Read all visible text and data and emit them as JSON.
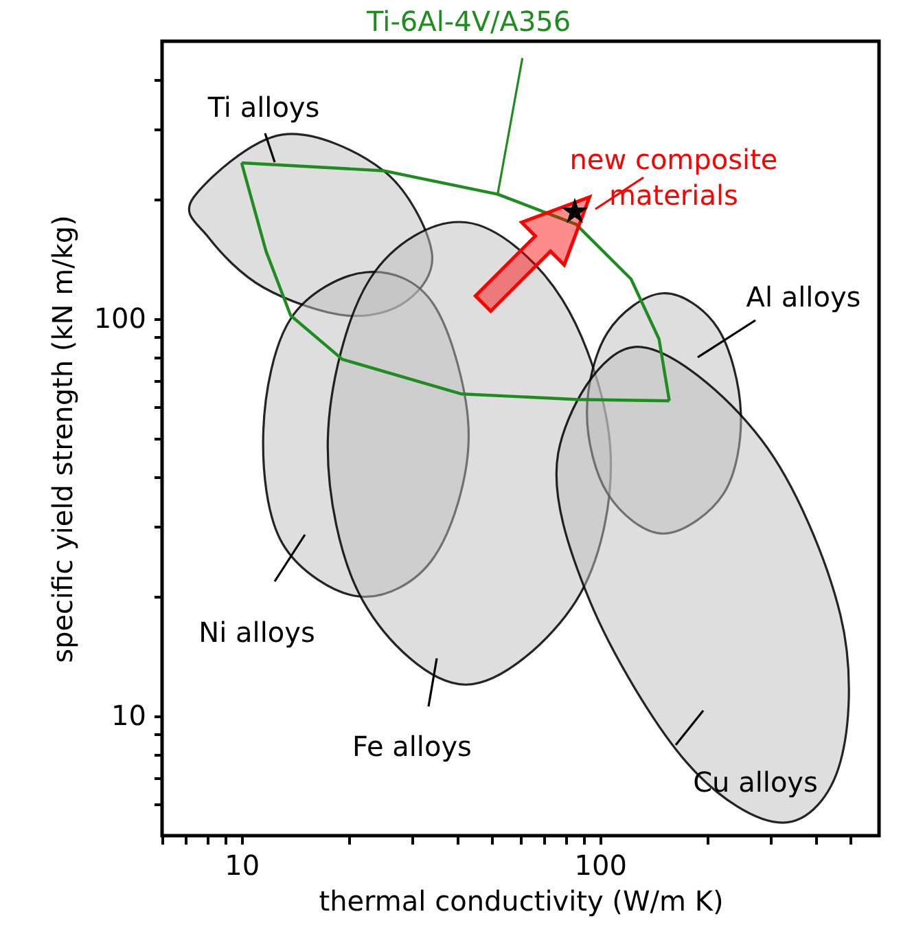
{
  "chart_data": {
    "type": "area",
    "xlabel": "thermal conductivity (W/m K)",
    "ylabel": "specific yield strength (kN m/kg)",
    "log": "xy",
    "grid": false,
    "xlim": [
      6,
      600
    ],
    "ylim": [
      5,
      500
    ],
    "xticks": [
      {
        "value": 6,
        "label": null
      },
      {
        "value": 7,
        "label": null
      },
      {
        "value": 8,
        "label": null
      },
      {
        "value": 9,
        "label": null
      },
      10,
      {
        "value": 20,
        "label": null
      },
      {
        "value": 30,
        "label": null
      },
      {
        "value": 40,
        "label": null
      },
      {
        "value": 50,
        "label": null
      },
      {
        "value": 60,
        "label": null
      },
      {
        "value": 70,
        "label": null
      },
      {
        "value": 80,
        "label": null
      },
      {
        "value": 90,
        "label": null
      },
      100,
      {
        "value": 200,
        "label": null
      },
      {
        "value": 300,
        "label": null
      },
      {
        "value": 400,
        "label": null
      },
      {
        "value": 500,
        "label": null
      }
    ],
    "yticks": [
      {
        "value": 6,
        "label": null
      },
      {
        "value": 7,
        "label": null
      },
      {
        "value": 8,
        "label": null
      },
      {
        "value": 9,
        "label": null
      },
      10,
      {
        "value": 20,
        "label": null
      },
      {
        "value": 30,
        "label": null
      },
      {
        "value": 40,
        "label": null
      },
      {
        "value": 50,
        "label": null
      },
      {
        "value": 60,
        "label": null
      },
      {
        "value": 70,
        "label": null
      },
      {
        "value": 80,
        "label": null
      },
      {
        "value": 90,
        "label": null
      },
      100,
      {
        "value": 200,
        "label": null
      },
      {
        "value": 300,
        "label": null
      },
      {
        "value": 400,
        "label": null
      }
    ],
    "series": [
      {
        "color": "#bebebe",
        "x": [
          7.34,
          13.0,
          24.9,
          33.9,
          28.9,
          19.6,
          11.5,
          8.1
        ],
        "values": [
          202,
          291,
          236,
          148,
          111,
          102,
          120,
          160
        ]
      },
      {
        "color": "#bebebe",
        "x": [
          22.2,
          34.5,
          43.0,
          34.5,
          21.4,
          13.0,
          11.5,
          13.7
        ],
        "values": [
          131,
          108,
          50.8,
          25.2,
          20.0,
          27.2,
          52.4,
          100
        ]
      },
      {
        "color": "#bebebe",
        "x": [
          42.2,
          78.4,
          107,
          85.7,
          42.2,
          21.8,
          17.4,
          22.8
        ],
        "values": [
          175,
          112,
          45.9,
          19.5,
          12.0,
          19.5,
          49.6,
          126
        ]
      },
      {
        "color": "#bebebe",
        "x": [
          150,
          213,
          247,
          221,
          150,
          105,
          91.9,
          105
        ],
        "values": [
          116,
          94.7,
          58.0,
          36.3,
          28.8,
          36.3,
          58.0,
          92.5
        ]
      },
      {
        "color": "#bebebe",
        "x": [
          125,
          282,
          468,
          468,
          323,
          174,
          93.6,
          76.4
        ],
        "values": [
          85.0,
          49.6,
          18.0,
          7.66,
          5.39,
          7.66,
          19.5,
          45.9
        ]
      },
      {
        "type": "line",
        "color": "#1e8c1e",
        "x": [
          10,
          24.9,
          51.8,
          85.7,
          122,
          146,
          156
        ],
        "values": [
          247,
          236,
          206,
          173,
          126,
          89.0,
          62.2
        ]
      },
      {
        "type": "line",
        "color": "#1e8c1e",
        "x": [
          10,
          11.7,
          13.7,
          19.1,
          41.1,
          85.7,
          156
        ],
        "values": [
          247,
          148,
          102,
          79.1,
          64.7,
          62.7,
          62.2
        ]
      },
      {
        "type": "scatter",
        "marker": "star",
        "color": "#000000",
        "x": [
          85
        ],
        "values": [
          186
        ]
      }
    ],
    "annotations": [
      "Ti alloys",
      "Ni alloys",
      "Fe alloys",
      "Al alloys",
      "Cu alloys",
      {
        "text": "Ti-6Al-4V/A356",
        "x": 51.8,
        "y": 206
      },
      {
        "text": "new composite\nmaterials",
        "x": 85,
        "y": 186
      }
    ]
  }
}
